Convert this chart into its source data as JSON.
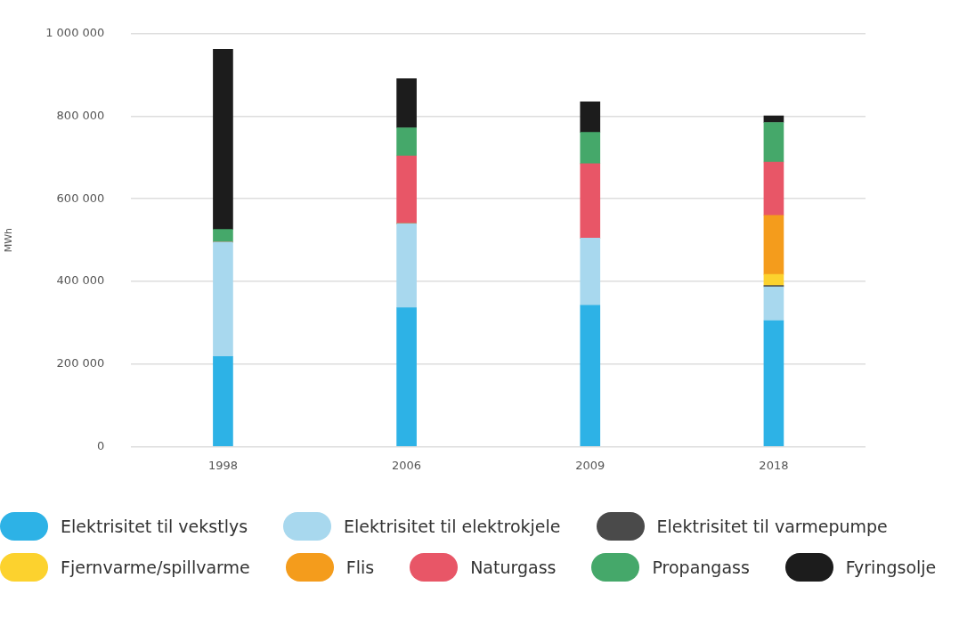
{
  "chart_data": {
    "type": "bar",
    "stacked": true,
    "ylabel": "MWh",
    "categories": [
      "1998",
      "2006",
      "2009",
      "2018"
    ],
    "series": [
      {
        "name": "Elektrisitet til vekstlys",
        "color": "#2db2e6",
        "values": [
          218000,
          336000,
          342000,
          305000
        ]
      },
      {
        "name": "Elektrisitet til elektrokjele",
        "color": "#a8d8ee",
        "values": [
          277000,
          204000,
          163000,
          82000
        ]
      },
      {
        "name": "Elektrisitet til varmepumpe",
        "color": "#4a4a4a",
        "values": [
          0,
          0,
          0,
          3000
        ]
      },
      {
        "name": "Fjernvarme/spillvarme",
        "color": "#fcd22e",
        "values": [
          0,
          0,
          0,
          27000
        ]
      },
      {
        "name": "Flis",
        "color": "#f49c1c",
        "values": [
          0,
          0,
          0,
          143000
        ]
      },
      {
        "name": "Naturgass",
        "color": "#e85667",
        "values": [
          0,
          164000,
          180000,
          129000
        ]
      },
      {
        "name": "Propangass",
        "color": "#45a86a",
        "values": [
          31000,
          68000,
          76000,
          96000
        ]
      },
      {
        "name": "Fyringsolje",
        "color": "#1c1c1c",
        "values": [
          436000,
          119000,
          74000,
          16000
        ]
      }
    ],
    "ylim": [
      0,
      1000000
    ],
    "yticks": [
      {
        "value": 0,
        "label": "0"
      },
      {
        "value": 200000,
        "label": "200 000"
      },
      {
        "value": 400000,
        "label": "400 000"
      },
      {
        "value": 600000,
        "label": "600 000"
      },
      {
        "value": 800000,
        "label": "800 000"
      },
      {
        "value": 1000000,
        "label": "1 000 000"
      }
    ],
    "grid": "y",
    "legend": "bottom"
  }
}
